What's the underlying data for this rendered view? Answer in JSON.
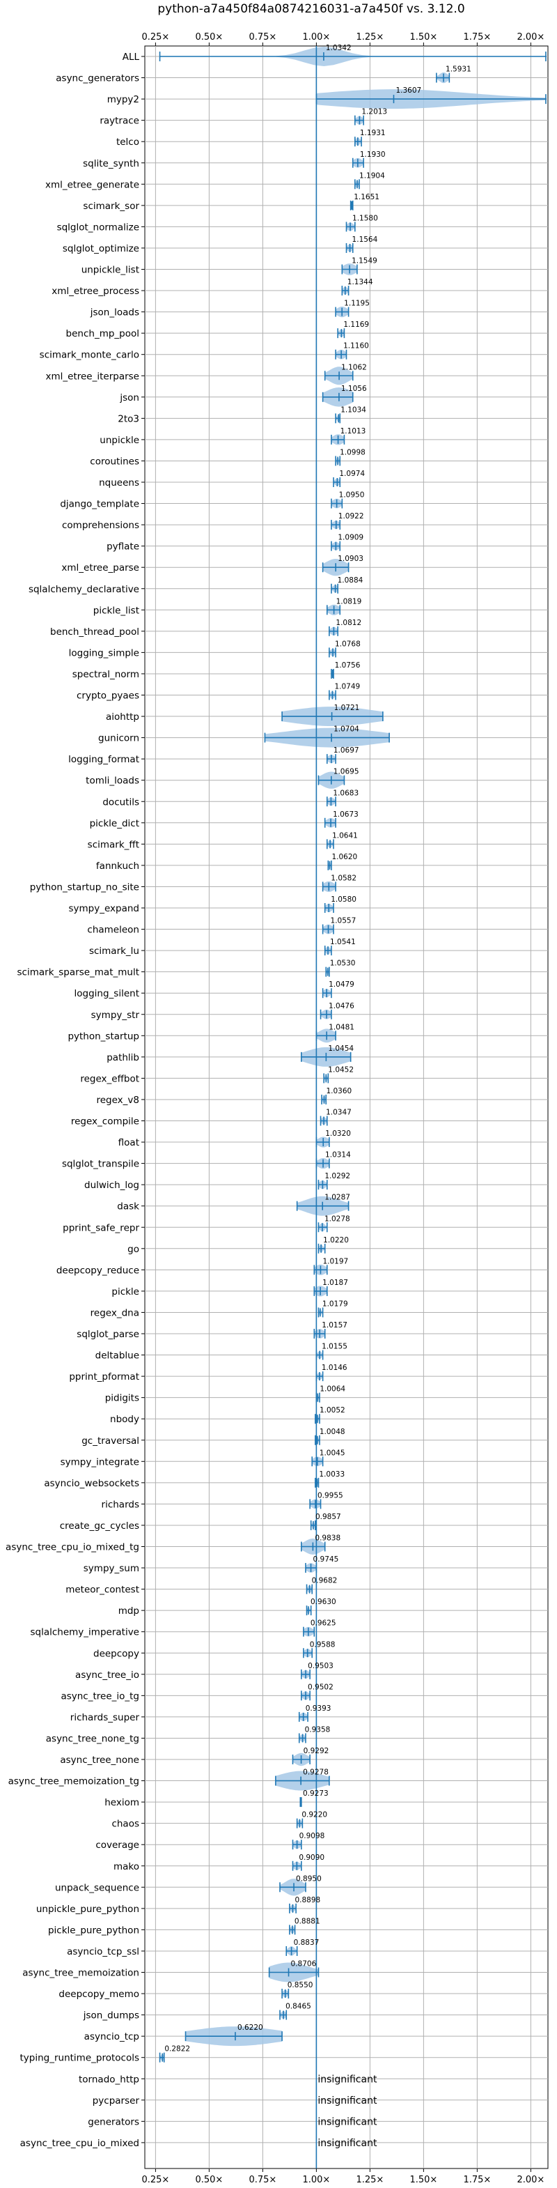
{
  "colors": {
    "series": "#1f77b4",
    "violin_fill": "#a6c8e6",
    "reference_line": "#1f77b4",
    "grid": "#b0b0b0"
  },
  "chart_data": {
    "type": "violin",
    "title": "python-a7a450f84a0874216031-a7a450f vs. 3.12.0",
    "xlim": [
      0.2,
      2.08
    ],
    "xticks": [
      "0.25×",
      "0.50×",
      "0.75×",
      "1.00×",
      "1.25×",
      "1.50×",
      "1.75×",
      "2.00×"
    ],
    "xtick_values": [
      0.25,
      0.5,
      0.75,
      1.0,
      1.25,
      1.5,
      1.75,
      2.0
    ],
    "xticks_position": "top and bottom",
    "reference_line": 1.0,
    "grid": true,
    "insignificant_label": "insignificant",
    "benchmarks": [
      {
        "name": "ALL",
        "value": 1.0342,
        "label": "1.0342",
        "min": 0.27,
        "max": 2.07,
        "spread": 0.09
      },
      {
        "name": "async_generators",
        "value": 1.5931,
        "label": "1.5931",
        "min": 1.56,
        "max": 1.62,
        "spread": 0.02
      },
      {
        "name": "mypy2",
        "value": 1.3607,
        "label": "1.3607",
        "min": 1.0,
        "max": 2.07,
        "spread": 0.35
      },
      {
        "name": "raytrace",
        "value": 1.2013,
        "label": "1.2013",
        "min": 1.18,
        "max": 1.22,
        "spread": 0.015
      },
      {
        "name": "telco",
        "value": 1.1931,
        "label": "1.1931",
        "min": 1.18,
        "max": 1.21,
        "spread": 0.012
      },
      {
        "name": "sqlite_synth",
        "value": 1.193,
        "label": "1.1930",
        "min": 1.17,
        "max": 1.22,
        "spread": 0.02
      },
      {
        "name": "xml_etree_generate",
        "value": 1.1904,
        "label": "1.1904",
        "min": 1.18,
        "max": 1.2,
        "spread": 0.01
      },
      {
        "name": "scimark_sor",
        "value": 1.1651,
        "label": "1.1651",
        "min": 1.16,
        "max": 1.17,
        "spread": 0.006
      },
      {
        "name": "sqlglot_normalize",
        "value": 1.158,
        "label": "1.1580",
        "min": 1.14,
        "max": 1.18,
        "spread": 0.015
      },
      {
        "name": "sqlglot_optimize",
        "value": 1.1564,
        "label": "1.1564",
        "min": 1.14,
        "max": 1.17,
        "spread": 0.012
      },
      {
        "name": "unpickle_list",
        "value": 1.1549,
        "label": "1.1549",
        "min": 1.12,
        "max": 1.19,
        "spread": 0.03
      },
      {
        "name": "xml_etree_process",
        "value": 1.1344,
        "label": "1.1344",
        "min": 1.12,
        "max": 1.15,
        "spread": 0.012
      },
      {
        "name": "json_loads",
        "value": 1.1195,
        "label": "1.1195",
        "min": 1.09,
        "max": 1.15,
        "spread": 0.025
      },
      {
        "name": "bench_mp_pool",
        "value": 1.1169,
        "label": "1.1169",
        "min": 1.1,
        "max": 1.13,
        "spread": 0.012
      },
      {
        "name": "scimark_monte_carlo",
        "value": 1.116,
        "label": "1.1160",
        "min": 1.09,
        "max": 1.14,
        "spread": 0.02
      },
      {
        "name": "xml_etree_iterparse",
        "value": 1.1062,
        "label": "1.1062",
        "min": 1.04,
        "max": 1.17,
        "spread": 0.045
      },
      {
        "name": "json",
        "value": 1.1056,
        "label": "1.1056",
        "min": 1.03,
        "max": 1.17,
        "spread": 0.06
      },
      {
        "name": "2to3",
        "value": 1.1034,
        "label": "1.1034",
        "min": 1.09,
        "max": 1.11,
        "spread": 0.008
      },
      {
        "name": "unpickle",
        "value": 1.1013,
        "label": "1.1013",
        "min": 1.07,
        "max": 1.13,
        "spread": 0.025
      },
      {
        "name": "coroutines",
        "value": 1.0998,
        "label": "1.0998",
        "min": 1.09,
        "max": 1.11,
        "spread": 0.008
      },
      {
        "name": "nqueens",
        "value": 1.0974,
        "label": "1.0974",
        "min": 1.08,
        "max": 1.11,
        "spread": 0.012
      },
      {
        "name": "django_template",
        "value": 1.095,
        "label": "1.0950",
        "min": 1.07,
        "max": 1.12,
        "spread": 0.02
      },
      {
        "name": "comprehensions",
        "value": 1.0922,
        "label": "1.0922",
        "min": 1.07,
        "max": 1.11,
        "spread": 0.015
      },
      {
        "name": "pyflate",
        "value": 1.0909,
        "label": "1.0909",
        "min": 1.07,
        "max": 1.11,
        "spread": 0.015
      },
      {
        "name": "xml_etree_parse",
        "value": 1.0903,
        "label": "1.0903",
        "min": 1.03,
        "max": 1.15,
        "spread": 0.045
      },
      {
        "name": "sqlalchemy_declarative",
        "value": 1.0884,
        "label": "1.0884",
        "min": 1.07,
        "max": 1.1,
        "spread": 0.012
      },
      {
        "name": "pickle_list",
        "value": 1.0819,
        "label": "1.0819",
        "min": 1.05,
        "max": 1.11,
        "spread": 0.025
      },
      {
        "name": "bench_thread_pool",
        "value": 1.0812,
        "label": "1.0812",
        "min": 1.06,
        "max": 1.1,
        "spread": 0.015
      },
      {
        "name": "logging_simple",
        "value": 1.0768,
        "label": "1.0768",
        "min": 1.06,
        "max": 1.09,
        "spread": 0.012
      },
      {
        "name": "spectral_norm",
        "value": 1.0756,
        "label": "1.0756",
        "min": 1.07,
        "max": 1.08,
        "spread": 0.005
      },
      {
        "name": "crypto_pyaes",
        "value": 1.0749,
        "label": "1.0749",
        "min": 1.06,
        "max": 1.09,
        "spread": 0.01
      },
      {
        "name": "aiohttp",
        "value": 1.0721,
        "label": "1.0721",
        "min": 0.84,
        "max": 1.31,
        "spread": 0.2
      },
      {
        "name": "gunicorn",
        "value": 1.0704,
        "label": "1.0704",
        "min": 0.76,
        "max": 1.34,
        "spread": 0.22
      },
      {
        "name": "logging_format",
        "value": 1.0697,
        "label": "1.0697",
        "min": 1.05,
        "max": 1.09,
        "spread": 0.015
      },
      {
        "name": "tomli_loads",
        "value": 1.0695,
        "label": "1.0695",
        "min": 1.01,
        "max": 1.13,
        "spread": 0.045
      },
      {
        "name": "docutils",
        "value": 1.0683,
        "label": "1.0683",
        "min": 1.05,
        "max": 1.09,
        "spread": 0.015
      },
      {
        "name": "pickle_dict",
        "value": 1.0673,
        "label": "1.0673",
        "min": 1.04,
        "max": 1.09,
        "spread": 0.02
      },
      {
        "name": "scimark_fft",
        "value": 1.0641,
        "label": "1.0641",
        "min": 1.05,
        "max": 1.08,
        "spread": 0.01
      },
      {
        "name": "fannkuch",
        "value": 1.062,
        "label": "1.0620",
        "min": 1.055,
        "max": 1.07,
        "spread": 0.006
      },
      {
        "name": "python_startup_no_site",
        "value": 1.0582,
        "label": "1.0582",
        "min": 1.03,
        "max": 1.09,
        "spread": 0.025
      },
      {
        "name": "sympy_expand",
        "value": 1.058,
        "label": "1.0580",
        "min": 1.04,
        "max": 1.08,
        "spread": 0.015
      },
      {
        "name": "chameleon",
        "value": 1.0557,
        "label": "1.0557",
        "min": 1.03,
        "max": 1.08,
        "spread": 0.02
      },
      {
        "name": "scimark_lu",
        "value": 1.0541,
        "label": "1.0541",
        "min": 1.04,
        "max": 1.07,
        "spread": 0.012
      },
      {
        "name": "scimark_sparse_mat_mult",
        "value": 1.053,
        "label": "1.0530",
        "min": 1.045,
        "max": 1.06,
        "spread": 0.006
      },
      {
        "name": "logging_silent",
        "value": 1.0479,
        "label": "1.0479",
        "min": 1.03,
        "max": 1.07,
        "spread": 0.015
      },
      {
        "name": "sympy_str",
        "value": 1.0476,
        "label": "1.0476",
        "min": 1.02,
        "max": 1.07,
        "spread": 0.02
      },
      {
        "name": "python_startup",
        "value": 1.0481,
        "label": "1.0481",
        "min": 1.0,
        "max": 1.09,
        "spread": 0.035
      },
      {
        "name": "pathlib",
        "value": 1.0454,
        "label": "1.0454",
        "min": 0.93,
        "max": 1.16,
        "spread": 0.09
      },
      {
        "name": "regex_effbot",
        "value": 1.0452,
        "label": "1.0452",
        "min": 1.035,
        "max": 1.055,
        "spread": 0.006
      },
      {
        "name": "regex_v8",
        "value": 1.036,
        "label": "1.0360",
        "min": 1.025,
        "max": 1.045,
        "spread": 0.008
      },
      {
        "name": "regex_compile",
        "value": 1.0347,
        "label": "1.0347",
        "min": 1.02,
        "max": 1.05,
        "spread": 0.012
      },
      {
        "name": "float",
        "value": 1.032,
        "label": "1.0320",
        "min": 1.0,
        "max": 1.06,
        "spread": 0.025
      },
      {
        "name": "sqlglot_transpile",
        "value": 1.0314,
        "label": "1.0314",
        "min": 1.0,
        "max": 1.06,
        "spread": 0.025
      },
      {
        "name": "dulwich_log",
        "value": 1.0292,
        "label": "1.0292",
        "min": 1.01,
        "max": 1.05,
        "spread": 0.015
      },
      {
        "name": "dask",
        "value": 1.0287,
        "label": "1.0287",
        "min": 0.91,
        "max": 1.15,
        "spread": 0.08
      },
      {
        "name": "pprint_safe_repr",
        "value": 1.0278,
        "label": "1.0278",
        "min": 1.01,
        "max": 1.05,
        "spread": 0.012
      },
      {
        "name": "go",
        "value": 1.022,
        "label": "1.0220",
        "min": 1.01,
        "max": 1.04,
        "spread": 0.01
      },
      {
        "name": "deepcopy_reduce",
        "value": 1.0197,
        "label": "1.0197",
        "min": 0.99,
        "max": 1.05,
        "spread": 0.025
      },
      {
        "name": "pickle",
        "value": 1.0187,
        "label": "1.0187",
        "min": 0.99,
        "max": 1.05,
        "spread": 0.025
      },
      {
        "name": "regex_dna",
        "value": 1.0179,
        "label": "1.0179",
        "min": 1.01,
        "max": 1.03,
        "spread": 0.006
      },
      {
        "name": "sqlglot_parse",
        "value": 1.0157,
        "label": "1.0157",
        "min": 0.99,
        "max": 1.04,
        "spread": 0.02
      },
      {
        "name": "deltablue",
        "value": 1.0155,
        "label": "1.0155",
        "min": 1.0,
        "max": 1.03,
        "spread": 0.01
      },
      {
        "name": "pprint_pformat",
        "value": 1.0146,
        "label": "1.0146",
        "min": 1.0,
        "max": 1.03,
        "spread": 0.01
      },
      {
        "name": "pidigits",
        "value": 1.0064,
        "label": "1.0064",
        "min": 1.0,
        "max": 1.015,
        "spread": 0.005
      },
      {
        "name": "nbody",
        "value": 1.0052,
        "label": "1.0052",
        "min": 0.995,
        "max": 1.015,
        "spread": 0.006
      },
      {
        "name": "gc_traversal",
        "value": 1.0048,
        "label": "1.0048",
        "min": 0.995,
        "max": 1.015,
        "spread": 0.006
      },
      {
        "name": "sympy_integrate",
        "value": 1.0045,
        "label": "1.0045",
        "min": 0.98,
        "max": 1.03,
        "spread": 0.02
      },
      {
        "name": "asyncio_websockets",
        "value": 1.0033,
        "label": "1.0033",
        "min": 0.995,
        "max": 1.01,
        "spread": 0.005
      },
      {
        "name": "richards",
        "value": 0.9955,
        "label": "0.9955",
        "min": 0.97,
        "max": 1.02,
        "spread": 0.02
      },
      {
        "name": "create_gc_cycles",
        "value": 0.9857,
        "label": "0.9857",
        "min": 0.975,
        "max": 0.995,
        "spread": 0.006
      },
      {
        "name": "async_tree_cpu_io_mixed_tg",
        "value": 0.9838,
        "label": "0.9838",
        "min": 0.93,
        "max": 1.04,
        "spread": 0.04
      },
      {
        "name": "sympy_sum",
        "value": 0.9745,
        "label": "0.9745",
        "min": 0.95,
        "max": 1.0,
        "spread": 0.02
      },
      {
        "name": "meteor_contest",
        "value": 0.9682,
        "label": "0.9682",
        "min": 0.955,
        "max": 0.98,
        "spread": 0.01
      },
      {
        "name": "mdp",
        "value": 0.963,
        "label": "0.9630",
        "min": 0.955,
        "max": 0.975,
        "spread": 0.006
      },
      {
        "name": "sqlalchemy_imperative",
        "value": 0.9625,
        "label": "0.9625",
        "min": 0.94,
        "max": 0.99,
        "spread": 0.02
      },
      {
        "name": "deepcopy",
        "value": 0.9588,
        "label": "0.9588",
        "min": 0.94,
        "max": 0.98,
        "spread": 0.015
      },
      {
        "name": "async_tree_io",
        "value": 0.9503,
        "label": "0.9503",
        "min": 0.93,
        "max": 0.97,
        "spread": 0.015
      },
      {
        "name": "async_tree_io_tg",
        "value": 0.9502,
        "label": "0.9502",
        "min": 0.93,
        "max": 0.97,
        "spread": 0.015
      },
      {
        "name": "richards_super",
        "value": 0.9393,
        "label": "0.9393",
        "min": 0.92,
        "max": 0.96,
        "spread": 0.015
      },
      {
        "name": "async_tree_none_tg",
        "value": 0.9358,
        "label": "0.9358",
        "min": 0.92,
        "max": 0.95,
        "spread": 0.012
      },
      {
        "name": "async_tree_none",
        "value": 0.9292,
        "label": "0.9292",
        "min": 0.89,
        "max": 0.97,
        "spread": 0.03
      },
      {
        "name": "async_tree_memoization_tg",
        "value": 0.9278,
        "label": "0.9278",
        "min": 0.81,
        "max": 1.06,
        "spread": 0.1
      },
      {
        "name": "hexiom",
        "value": 0.9273,
        "label": "0.9273",
        "min": 0.925,
        "max": 0.93,
        "spread": 0.003
      },
      {
        "name": "chaos",
        "value": 0.922,
        "label": "0.9220",
        "min": 0.91,
        "max": 0.935,
        "spread": 0.01
      },
      {
        "name": "coverage",
        "value": 0.9098,
        "label": "0.9098",
        "min": 0.89,
        "max": 0.93,
        "spread": 0.015
      },
      {
        "name": "mako",
        "value": 0.909,
        "label": "0.9090",
        "min": 0.89,
        "max": 0.93,
        "spread": 0.015
      },
      {
        "name": "unpack_sequence",
        "value": 0.895,
        "label": "0.8950",
        "min": 0.83,
        "max": 0.95,
        "spread": 0.04
      },
      {
        "name": "unpickle_pure_python",
        "value": 0.8898,
        "label": "0.8898",
        "min": 0.875,
        "max": 0.905,
        "spread": 0.01
      },
      {
        "name": "pickle_pure_python",
        "value": 0.8881,
        "label": "0.8881",
        "min": 0.875,
        "max": 0.9,
        "spread": 0.01
      },
      {
        "name": "asyncio_tcp_ssl",
        "value": 0.8837,
        "label": "0.8837",
        "min": 0.86,
        "max": 0.91,
        "spread": 0.015
      },
      {
        "name": "async_tree_memoization",
        "value": 0.8706,
        "label": "0.8706",
        "min": 0.78,
        "max": 1.01,
        "spread": 0.09
      },
      {
        "name": "deepcopy_memo",
        "value": 0.855,
        "label": "0.8550",
        "min": 0.84,
        "max": 0.87,
        "spread": 0.012
      },
      {
        "name": "json_dumps",
        "value": 0.8465,
        "label": "0.8465",
        "min": 0.83,
        "max": 0.86,
        "spread": 0.012
      },
      {
        "name": "asyncio_tcp",
        "value": 0.622,
        "label": "0.6220",
        "min": 0.39,
        "max": 0.84,
        "spread": 0.2
      },
      {
        "name": "typing_runtime_protocols",
        "value": 0.2822,
        "label": "0.2822",
        "min": 0.27,
        "max": 0.29,
        "spread": 0.008
      },
      {
        "name": "tornado_http",
        "value": 1.0,
        "label": "",
        "insignificant": true
      },
      {
        "name": "pycparser",
        "value": 1.0,
        "label": "",
        "insignificant": true
      },
      {
        "name": "generators",
        "value": 1.0,
        "label": "",
        "insignificant": true
      },
      {
        "name": "async_tree_cpu_io_mixed",
        "value": 1.0,
        "label": "",
        "insignificant": true
      }
    ]
  }
}
